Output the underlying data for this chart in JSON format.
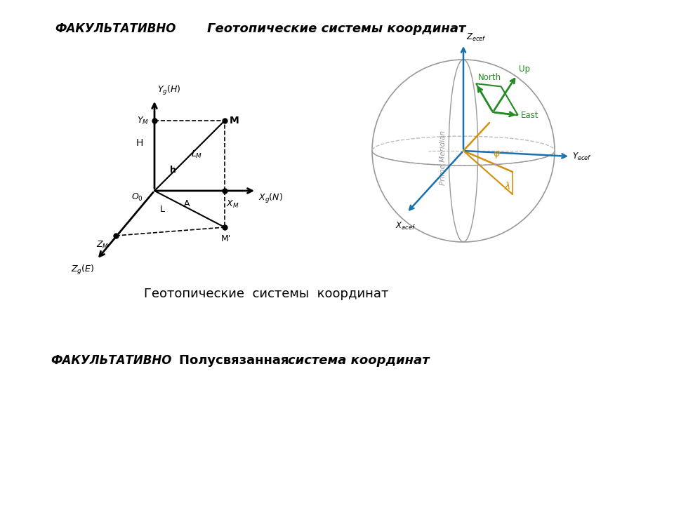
{
  "bg_color": "#ffffff",
  "title_fakultativno": "ФАКУЛЬТАТИВНО",
  "title_geotop": "Геотопические системы координат",
  "subtitle_geotop": "Геотопические  системы  координат",
  "fakultativno2": "ФАКУЛЬТАТИВНО",
  "polus_title1": "Полусвязанная ",
  "polus_title2": "система координат",
  "colors": {
    "black": "#000000",
    "green": "#228B22",
    "blue": "#1a6fad",
    "orange": "#d4900a",
    "gray": "#999999",
    "lgray": "#bbbbbb"
  }
}
